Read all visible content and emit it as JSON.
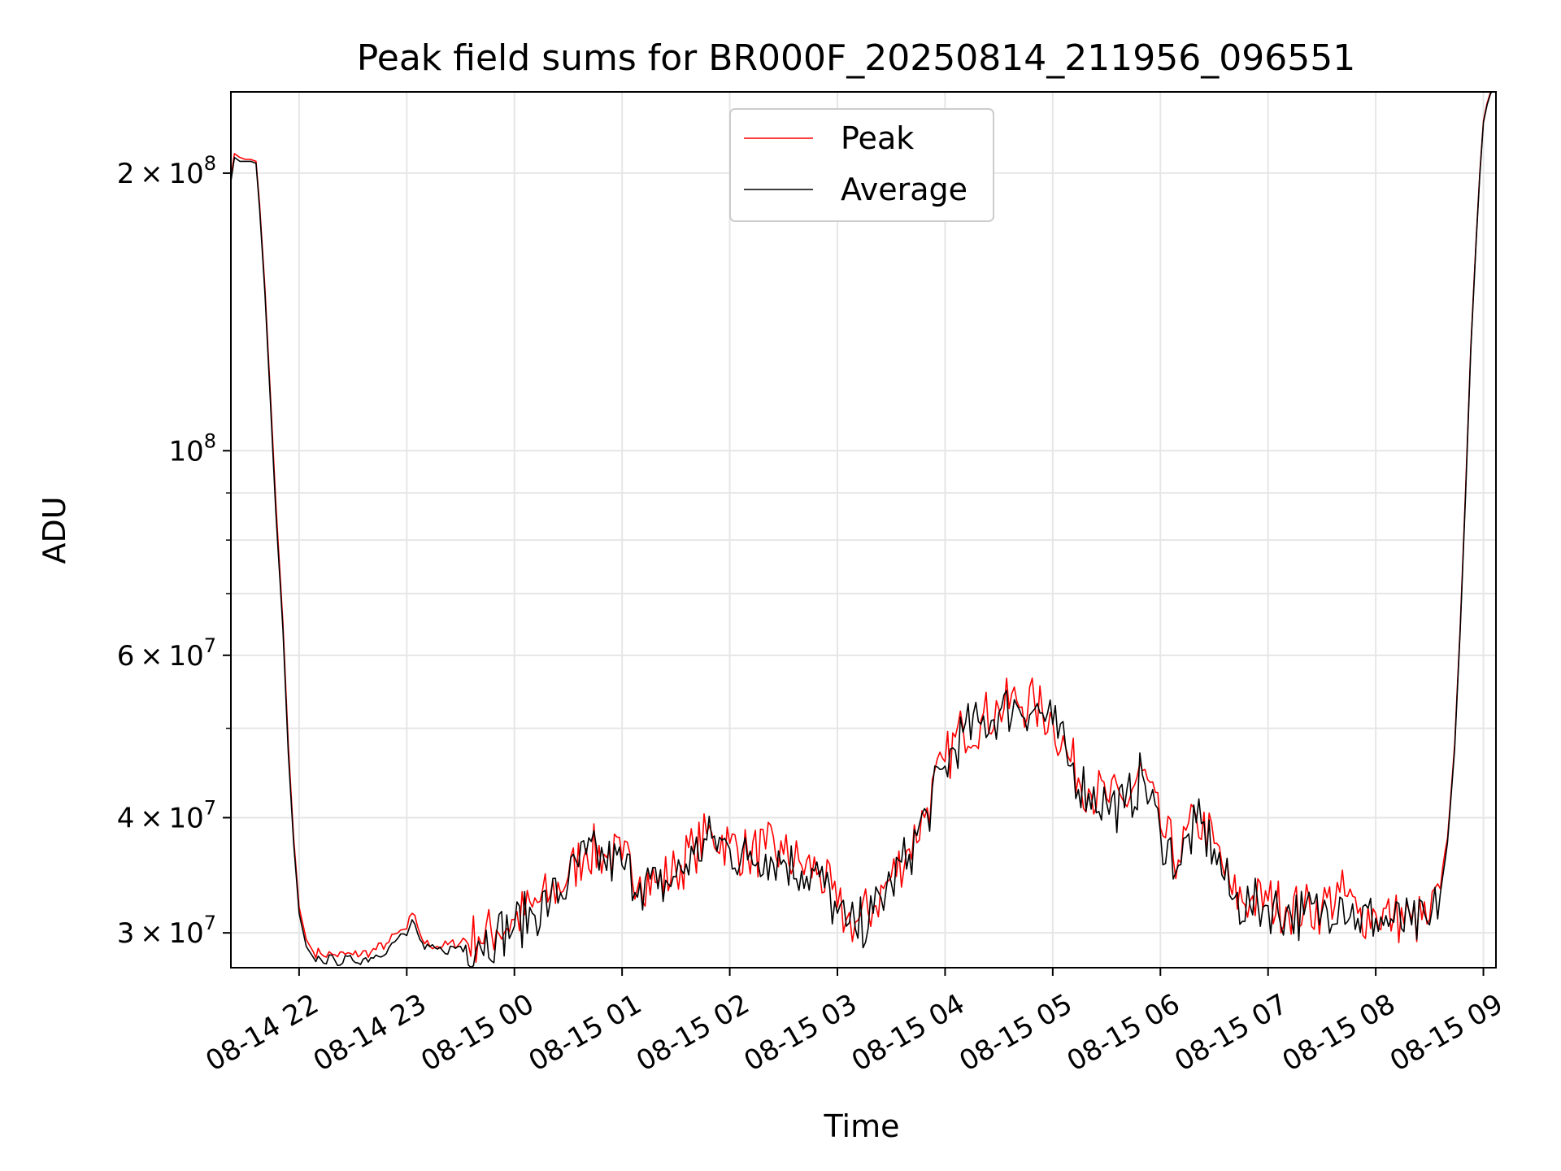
{
  "colors": {
    "peak": "#ff0000",
    "average": "#000000",
    "grid": "#e6e6e6",
    "axes": "#000000",
    "background": "#ffffff"
  },
  "chart_data": {
    "type": "line",
    "title": "Peak field sums for BR000F_20250814_211956_096551",
    "xlabel": "Time",
    "ylabel": "ADU",
    "y_scale": "log",
    "grid": true,
    "legend_position": "upper center",
    "xlim": [
      "2025-08-14 21:22",
      "2025-08-15 09:07"
    ],
    "ylim": [
      27500000,
      245000000
    ],
    "x_ticks": [
      "08-14 22",
      "08-14 23",
      "08-15 00",
      "08-15 01",
      "08-15 02",
      "08-15 03",
      "08-15 04",
      "08-15 05",
      "08-15 06",
      "08-15 07",
      "08-15 08",
      "08-15 09"
    ],
    "y_ticks": [
      {
        "value": 30000000,
        "mantissa": "3",
        "exp": "7"
      },
      {
        "value": 40000000,
        "mantissa": "4",
        "exp": "7"
      },
      {
        "value": 60000000,
        "mantissa": "6",
        "exp": "7"
      },
      {
        "value": 100000000,
        "mantissa": "",
        "exp": "8"
      },
      {
        "value": 200000000,
        "mantissa": "2",
        "exp": "8"
      }
    ],
    "series": [
      {
        "name": "Peak",
        "color": "#ff0000",
        "x": [
          "2025-08-14 21:22",
          "2025-08-14 21:24",
          "2025-08-14 21:27",
          "2025-08-14 21:30",
          "2025-08-14 21:33",
          "2025-08-14 21:36",
          "2025-08-14 21:38",
          "2025-08-14 21:41",
          "2025-08-14 21:44",
          "2025-08-14 21:47",
          "2025-08-14 21:51",
          "2025-08-14 21:54",
          "2025-08-14 21:57",
          "2025-08-14 22:00",
          "2025-08-14 22:04",
          "2025-08-14 22:08",
          "2025-08-14 22:12",
          "2025-08-14 22:20",
          "2025-08-14 22:30",
          "2025-08-14 22:40",
          "2025-08-14 22:50",
          "2025-08-14 22:55",
          "2025-08-14 23:00",
          "2025-08-14 23:03",
          "2025-08-14 23:06",
          "2025-08-14 23:10",
          "2025-08-14 23:20",
          "2025-08-14 23:30",
          "2025-08-14 23:40",
          "2025-08-14 23:50",
          "2025-08-15 00:00",
          "2025-08-15 00:10",
          "2025-08-15 00:20",
          "2025-08-15 00:30",
          "2025-08-15 00:40",
          "2025-08-15 00:50",
          "2025-08-15 01:00",
          "2025-08-15 01:10",
          "2025-08-15 01:20",
          "2025-08-15 01:30",
          "2025-08-15 01:40",
          "2025-08-15 01:50",
          "2025-08-15 02:00",
          "2025-08-15 02:10",
          "2025-08-15 02:20",
          "2025-08-15 02:30",
          "2025-08-15 02:40",
          "2025-08-15 02:50",
          "2025-08-15 03:00",
          "2025-08-15 03:05",
          "2025-08-15 03:10",
          "2025-08-15 03:20",
          "2025-08-15 03:30",
          "2025-08-15 03:40",
          "2025-08-15 03:50",
          "2025-08-15 04:00",
          "2025-08-15 04:10",
          "2025-08-15 04:20",
          "2025-08-15 04:30",
          "2025-08-15 04:40",
          "2025-08-15 04:50",
          "2025-08-15 05:00",
          "2025-08-15 05:10",
          "2025-08-15 05:20",
          "2025-08-15 05:30",
          "2025-08-15 05:40",
          "2025-08-15 05:50",
          "2025-08-15 06:00",
          "2025-08-15 06:10",
          "2025-08-15 06:20",
          "2025-08-15 06:30",
          "2025-08-15 06:40",
          "2025-08-15 06:50",
          "2025-08-15 07:00",
          "2025-08-15 07:10",
          "2025-08-15 07:20",
          "2025-08-15 07:30",
          "2025-08-15 07:40",
          "2025-08-15 07:50",
          "2025-08-15 08:00",
          "2025-08-15 08:10",
          "2025-08-15 08:20",
          "2025-08-15 08:30",
          "2025-08-15 08:36",
          "2025-08-15 08:40",
          "2025-08-15 08:44",
          "2025-08-15 08:47",
          "2025-08-15 08:50",
          "2025-08-15 08:53",
          "2025-08-15 08:56",
          "2025-08-15 08:58",
          "2025-08-15 09:00",
          "2025-08-15 09:02",
          "2025-08-15 09:04",
          "2025-08-15 09:06"
        ],
        "y": [
          198000000,
          210000000,
          208000000,
          207000000,
          207000000,
          206000000,
          185000000,
          150000000,
          115000000,
          88000000,
          65000000,
          48000000,
          38000000,
          32000000,
          29500000,
          28600000,
          28500000,
          28400000,
          28400000,
          28600000,
          29300000,
          30000000,
          30300000,
          31500000,
          30500000,
          29200000,
          29000000,
          29300000,
          29700000,
          30200000,
          31000000,
          32000000,
          33000000,
          34500000,
          37000000,
          36500000,
          36000000,
          34500000,
          34000000,
          35000000,
          37000000,
          38500000,
          37500000,
          36500000,
          37000000,
          36500000,
          35500000,
          35000000,
          32000000,
          31000000,
          30800000,
          32000000,
          34500000,
          37000000,
          41000000,
          46000000,
          50000000,
          51000000,
          52500000,
          53500000,
          53000000,
          51000000,
          46000000,
          43000000,
          42000000,
          41500000,
          45000000,
          39000000,
          36000000,
          40000000,
          37500000,
          33000000,
          32500000,
          32500000,
          32000000,
          31800000,
          32000000,
          33200000,
          31500000,
          31500000,
          31200000,
          31000000,
          31000000,
          33500000,
          38000000,
          48000000,
          64000000,
          90000000,
          130000000,
          170000000,
          200000000,
          228000000,
          238000000,
          245000000,
          248000000
        ]
      },
      {
        "name": "Average",
        "color": "#000000",
        "x": [
          "2025-08-14 21:22",
          "2025-08-14 21:24",
          "2025-08-14 21:27",
          "2025-08-14 21:30",
          "2025-08-14 21:33",
          "2025-08-14 21:36",
          "2025-08-14 21:38",
          "2025-08-14 21:41",
          "2025-08-14 21:44",
          "2025-08-14 21:47",
          "2025-08-14 21:51",
          "2025-08-14 21:54",
          "2025-08-14 21:57",
          "2025-08-14 22:00",
          "2025-08-14 22:04",
          "2025-08-14 22:08",
          "2025-08-14 22:12",
          "2025-08-14 22:20",
          "2025-08-14 22:30",
          "2025-08-14 22:40",
          "2025-08-14 22:50",
          "2025-08-14 22:55",
          "2025-08-14 23:00",
          "2025-08-14 23:03",
          "2025-08-14 23:06",
          "2025-08-14 23:10",
          "2025-08-14 23:20",
          "2025-08-14 23:30",
          "2025-08-14 23:40",
          "2025-08-14 23:50",
          "2025-08-15 00:00",
          "2025-08-15 00:10",
          "2025-08-15 00:20",
          "2025-08-15 00:30",
          "2025-08-15 00:40",
          "2025-08-15 00:50",
          "2025-08-15 01:00",
          "2025-08-15 01:10",
          "2025-08-15 01:20",
          "2025-08-15 01:30",
          "2025-08-15 01:40",
          "2025-08-15 01:50",
          "2025-08-15 02:00",
          "2025-08-15 02:10",
          "2025-08-15 02:20",
          "2025-08-15 02:30",
          "2025-08-15 02:40",
          "2025-08-15 02:50",
          "2025-08-15 03:00",
          "2025-08-15 03:05",
          "2025-08-15 03:10",
          "2025-08-15 03:20",
          "2025-08-15 03:30",
          "2025-08-15 03:40",
          "2025-08-15 03:50",
          "2025-08-15 04:00",
          "2025-08-15 04:10",
          "2025-08-15 04:20",
          "2025-08-15 04:30",
          "2025-08-15 04:40",
          "2025-08-15 04:50",
          "2025-08-15 05:00",
          "2025-08-15 05:10",
          "2025-08-15 05:20",
          "2025-08-15 05:30",
          "2025-08-15 05:40",
          "2025-08-15 05:50",
          "2025-08-15 06:00",
          "2025-08-15 06:10",
          "2025-08-15 06:20",
          "2025-08-15 06:30",
          "2025-08-15 06:40",
          "2025-08-15 06:50",
          "2025-08-15 07:00",
          "2025-08-15 07:10",
          "2025-08-15 07:20",
          "2025-08-15 07:30",
          "2025-08-15 07:40",
          "2025-08-15 07:50",
          "2025-08-15 08:00",
          "2025-08-15 08:10",
          "2025-08-15 08:20",
          "2025-08-15 08:30",
          "2025-08-15 08:36",
          "2025-08-15 08:40",
          "2025-08-15 08:44",
          "2025-08-15 08:47",
          "2025-08-15 08:50",
          "2025-08-15 08:53",
          "2025-08-15 08:56",
          "2025-08-15 08:58",
          "2025-08-15 09:00",
          "2025-08-15 09:02",
          "2025-08-15 09:04",
          "2025-08-15 09:06"
        ],
        "y": [
          196000000,
          208000000,
          206000000,
          206000000,
          206000000,
          205000000,
          183000000,
          148000000,
          113000000,
          86000000,
          64000000,
          47000000,
          37500000,
          31500000,
          29000000,
          28200000,
          28100000,
          28000000,
          28000000,
          28200000,
          28900000,
          29600000,
          29800000,
          31000000,
          30000000,
          28800000,
          28700000,
          29000000,
          29400000,
          29900000,
          30500000,
          31500000,
          32500000,
          34000000,
          36500000,
          36000000,
          35500000,
          34000000,
          33500000,
          34500000,
          36500000,
          38000000,
          37000000,
          36000000,
          36500000,
          36000000,
          35000000,
          34500000,
          31500000,
          30500000,
          30300000,
          31500000,
          34000000,
          36500000,
          40500000,
          45500000,
          49500000,
          50500000,
          52000000,
          53000000,
          52500000,
          50500000,
          45500000,
          42500000,
          41500000,
          41000000,
          44500000,
          38500000,
          35500000,
          39500000,
          37000000,
          32600000,
          32100000,
          32100000,
          31600000,
          31400000,
          31600000,
          32800000,
          31100000,
          31100000,
          30800000,
          30600000,
          30600000,
          33100000,
          37600000,
          47500000,
          63500000,
          89000000,
          129000000,
          169000000,
          199000000,
          227000000,
          237000000,
          244000000,
          247000000
        ]
      }
    ]
  }
}
